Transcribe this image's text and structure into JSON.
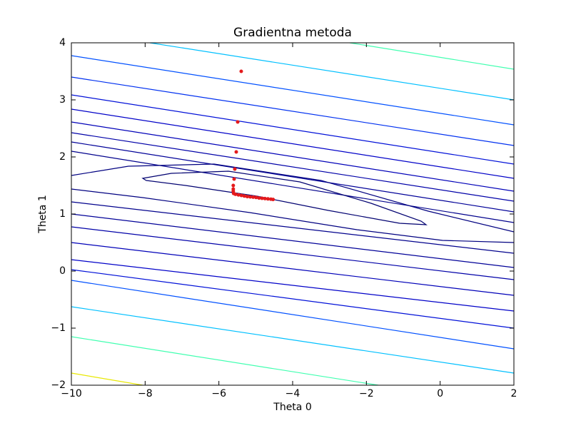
{
  "chart_data": {
    "type": "contour",
    "title": "Gradientna metoda",
    "xlabel": "Theta 0",
    "ylabel": "Theta 1",
    "xlim": [
      -10,
      2
    ],
    "ylim": [
      -2,
      4
    ],
    "xticks": [
      {
        "value": -10,
        "label": "−10"
      },
      {
        "value": -8,
        "label": "−8"
      },
      {
        "value": -6,
        "label": "−6"
      },
      {
        "value": -4,
        "label": "−4"
      },
      {
        "value": -2,
        "label": "−2"
      },
      0,
      2
    ],
    "yticks": [
      {
        "value": -2,
        "label": "−2"
      },
      {
        "value": -1,
        "label": "−1"
      },
      0,
      1,
      2,
      3,
      4
    ],
    "contours": [
      {
        "color": "#40ffb0",
        "x": [
          -2.452,
          2
        ],
        "y": [
          4,
          3.5375
        ]
      },
      {
        "color": "#00c0ff",
        "x": [
          -7.871,
          2
        ],
        "y": [
          4,
          3.0
        ]
      },
      {
        "color": "#0050ff",
        "x": [
          -10,
          2
        ],
        "y": [
          3.775,
          2.5625
        ]
      },
      {
        "color": "#0030f0",
        "x": [
          -10,
          2
        ],
        "y": [
          3.4,
          2.2
        ]
      },
      {
        "color": "#0010d8",
        "x": [
          -10,
          2
        ],
        "y": [
          3.0875,
          1.875
        ]
      },
      {
        "color": "#0000c8",
        "x": [
          -10,
          2
        ],
        "y": [
          2.8375,
          1.625
        ]
      },
      {
        "color": "#0000b8",
        "x": [
          -10,
          2
        ],
        "y": [
          2.6125,
          1.4
        ]
      },
      {
        "color": "#0000a8",
        "x": [
          -10,
          2
        ],
        "y": [
          2.425,
          1.225
        ]
      },
      {
        "color": "#000098",
        "x": [
          -10,
          2
        ],
        "y": [
          2.2625,
          1.0375
        ]
      },
      {
        "color": "#00008c",
        "x": [
          -10,
          2
        ],
        "y": [
          2.1,
          0.85
        ]
      },
      {
        "color": "#000080",
        "x": [
          2,
          -0.323,
          -3.226,
          -6.129,
          -8.452,
          -10
        ],
        "y": [
          0.6875,
          1.05,
          1.5875,
          1.875,
          1.8375,
          1.675
        ]
      },
      {
        "color": "#000080",
        "x": [
          -10,
          -8.065,
          -5.161,
          -2.258,
          0.065,
          2
        ],
        "y": [
          1.4375,
          1.2875,
          1.025,
          0.725,
          0.5375,
          0.5
        ]
      },
      {
        "color": "#000070",
        "closed": true,
        "x": [
          -8.065,
          -7.29,
          -5.742,
          -3.806,
          -1.871,
          -0.516,
          -0.381,
          -1.097,
          -3.032,
          -4.968,
          -6.903,
          -7.968
        ],
        "y": [
          1.625,
          1.7125,
          1.75,
          1.5625,
          1.1875,
          0.875,
          0.8125,
          0.8375,
          1.0625,
          1.3125,
          1.5,
          1.5875
        ]
      },
      {
        "color": "#00008c",
        "x": [
          -10,
          2
        ],
        "y": [
          1.2125,
          0.3125
        ]
      },
      {
        "color": "#000098",
        "x": [
          -10,
          2
        ],
        "y": [
          1.0,
          0.0625
        ]
      },
      {
        "color": "#0000a8",
        "x": [
          -10,
          2
        ],
        "y": [
          0.775,
          -0.15
        ]
      },
      {
        "color": "#0000b8",
        "x": [
          -10,
          2
        ],
        "y": [
          0.5,
          -0.425
        ]
      },
      {
        "color": "#0000c8",
        "x": [
          -10,
          2
        ],
        "y": [
          0.2,
          -0.7
        ]
      },
      {
        "color": "#0010d8",
        "x": [
          -10,
          2
        ],
        "y": [
          0.025,
          -1.0
        ]
      },
      {
        "color": "#0050ff",
        "x": [
          -10,
          2
        ],
        "y": [
          -0.1625,
          -1.3625
        ]
      },
      {
        "color": "#00c0ff",
        "x": [
          -10,
          2
        ],
        "y": [
          -0.625,
          -1.7875
        ]
      },
      {
        "color": "#40ffb0",
        "x": [
          -10,
          -1.677
        ],
        "y": [
          -1.15,
          -2
        ]
      },
      {
        "color": "#e8e800",
        "x": [
          -10,
          -8.065
        ],
        "y": [
          -1.7875,
          -2
        ]
      }
    ],
    "points": {
      "color": "#e41a1c",
      "x": [
        -5.394,
        -5.49,
        -5.529,
        -5.568,
        -5.587,
        -5.61,
        -5.61,
        -5.61,
        -5.6,
        -5.55,
        -5.47,
        -5.39,
        -5.31,
        -5.23,
        -5.15,
        -5.07,
        -4.99,
        -4.91,
        -4.83,
        -4.75,
        -4.67,
        -4.59,
        -4.53
      ],
      "y": [
        3.5,
        2.6125,
        2.0875,
        1.7875,
        1.6125,
        1.5,
        1.4375,
        1.4,
        1.36,
        1.345,
        1.335,
        1.325,
        1.315,
        1.305,
        1.3,
        1.295,
        1.29,
        1.28,
        1.275,
        1.27,
        1.265,
        1.26,
        1.255
      ]
    }
  }
}
